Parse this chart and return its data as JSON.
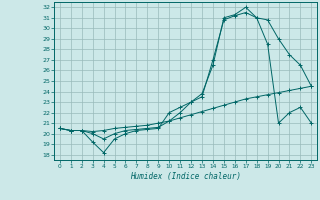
{
  "xlabel": "Humidex (Indice chaleur)",
  "bg_color": "#cce8e8",
  "grid_color": "#99bbbb",
  "line_color": "#006666",
  "xlim": [
    -0.5,
    23.5
  ],
  "ylim": [
    17.5,
    32.5
  ],
  "yticks": [
    18,
    19,
    20,
    21,
    22,
    23,
    24,
    25,
    26,
    27,
    28,
    29,
    30,
    31,
    32
  ],
  "xticks": [
    0,
    1,
    2,
    3,
    4,
    5,
    6,
    7,
    8,
    9,
    10,
    11,
    12,
    13,
    14,
    15,
    16,
    17,
    18,
    19,
    20,
    21,
    22,
    23
  ],
  "line1_x": [
    0,
    1,
    2,
    3,
    4,
    5,
    6,
    7,
    8,
    9,
    10,
    11,
    12,
    13,
    14,
    15,
    16,
    17,
    18,
    19,
    20,
    21,
    22,
    23
  ],
  "line1_y": [
    20.5,
    20.3,
    20.3,
    20.2,
    20.3,
    20.5,
    20.6,
    20.7,
    20.8,
    21.0,
    21.2,
    21.5,
    21.8,
    22.1,
    22.4,
    22.7,
    23.0,
    23.3,
    23.5,
    23.7,
    23.9,
    24.1,
    24.3,
    24.5
  ],
  "line2_x": [
    0,
    1,
    2,
    3,
    4,
    5,
    6,
    7,
    8,
    9,
    10,
    11,
    12,
    13,
    14,
    15,
    16,
    17,
    18,
    19,
    20,
    21,
    22,
    23
  ],
  "line2_y": [
    20.5,
    20.3,
    20.3,
    20.0,
    19.5,
    20.0,
    20.3,
    20.4,
    20.5,
    20.6,
    21.2,
    22.0,
    23.0,
    23.8,
    26.5,
    31.0,
    31.3,
    32.0,
    31.0,
    30.8,
    29.0,
    27.5,
    26.5,
    24.5
  ],
  "line3_x": [
    0,
    1,
    2,
    3,
    4,
    5,
    6,
    7,
    8,
    9,
    10,
    11,
    12,
    13,
    14,
    15,
    16,
    17,
    18,
    19,
    20,
    21,
    22,
    23
  ],
  "line3_y": [
    20.5,
    20.3,
    20.3,
    19.2,
    18.2,
    19.5,
    20.0,
    20.3,
    20.4,
    20.5,
    22.0,
    22.5,
    23.0,
    23.5,
    27.0,
    30.8,
    31.2,
    31.5,
    31.0,
    28.5,
    21.0,
    22.0,
    22.5,
    21.0
  ]
}
